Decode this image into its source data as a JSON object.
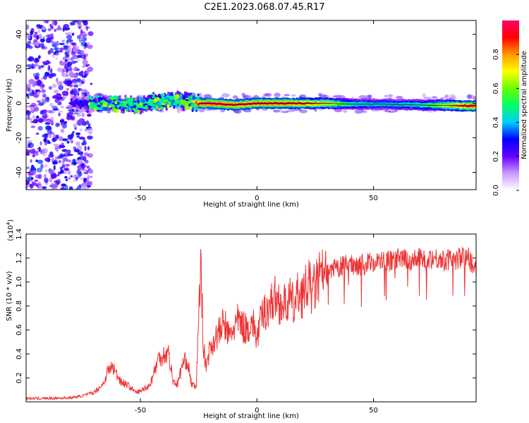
{
  "title": "C2E1.2023.068.07.45.R17",
  "chart_data": [
    {
      "type": "heatmap",
      "xlabel": "Height of straight line (km)",
      "ylabel": "Frequency (Hz)",
      "xlim": [
        -99,
        94
      ],
      "ylim": [
        -50,
        48
      ],
      "x_ticks": [
        {
          "value": -50,
          "label": "-50"
        },
        {
          "value": 0,
          "label": "0"
        },
        {
          "value": 50,
          "label": "50"
        }
      ],
      "y_ticks": [
        {
          "value": -40,
          "label": "-40"
        },
        {
          "value": -20,
          "label": "-20"
        },
        {
          "value": 0,
          "label": "0"
        },
        {
          "value": 20,
          "label": "20"
        },
        {
          "value": 40,
          "label": "40"
        }
      ],
      "ridge": {
        "x": [
          -80,
          -70,
          -60,
          -50,
          -45,
          -40,
          -35,
          -30,
          -25,
          -20,
          -10,
          0,
          10,
          20,
          30,
          40,
          50,
          60,
          70,
          80,
          90,
          94
        ],
        "y": [
          0,
          0,
          -0.5,
          -1,
          1,
          1,
          2,
          1,
          0,
          0,
          -1,
          0,
          0,
          0,
          0,
          -0.5,
          -0.5,
          -0.7,
          -1,
          -1.2,
          -1.5,
          -1.5
        ],
        "amplitude": [
          0.25,
          0.35,
          0.45,
          0.5,
          0.55,
          0.55,
          0.55,
          0.6,
          0.95,
          1.0,
          0.95,
          0.95,
          0.95,
          0.9,
          0.75,
          0.5,
          0.45,
          0.45,
          0.5,
          0.7,
          0.95,
          0.95
        ]
      },
      "colorbar": {
        "label": "Normalized spectral amplitude",
        "range": [
          0,
          1
        ],
        "ticks": [
          {
            "value": 0.0,
            "label": "0.0"
          },
          {
            "value": 0.2,
            "label": "0.2"
          },
          {
            "value": 0.4,
            "label": "0.4"
          },
          {
            "value": 0.6,
            "label": "0.6"
          },
          {
            "value": 0.8,
            "label": "0.8"
          }
        ],
        "stops": [
          "#ffffff",
          "#cc99ff",
          "#6600ff",
          "#0000ff",
          "#00ccff",
          "#00ff66",
          "#66ff00",
          "#ffff00",
          "#ff9900",
          "#ff0000",
          "#ff0066"
        ]
      }
    },
    {
      "type": "line",
      "xlabel": "Height of straight line (km)",
      "ylabel": "SNR (10 * v/v)",
      "y_multiplier": "(x10",
      "y_multiplier_exp": "4",
      "y_multiplier_close": ")",
      "xlim": [
        -99,
        94
      ],
      "ylim": [
        0,
        14000
      ],
      "x_ticks": [
        {
          "value": -50,
          "label": "-50"
        },
        {
          "value": 0,
          "label": "0"
        },
        {
          "value": 50,
          "label": "50"
        }
      ],
      "y_ticks": [
        {
          "value": 2000,
          "label": "0.2"
        },
        {
          "value": 4000,
          "label": "0.4"
        },
        {
          "value": 6000,
          "label": "0.6"
        },
        {
          "value": 8000,
          "label": "0.8"
        },
        {
          "value": 10000,
          "label": "1.0"
        },
        {
          "value": 12000,
          "label": "1.2"
        },
        {
          "value": 14000,
          "label": "1.4"
        }
      ],
      "color": "#ee3333",
      "series": [
        {
          "x": [
            -99,
            -90,
            -80,
            -75,
            -70,
            -66,
            -64,
            -62,
            -60,
            -58,
            -56,
            -54,
            -52,
            -50,
            -48,
            -46,
            -44,
            -42,
            -40,
            -38,
            -36,
            -34,
            -32,
            -30,
            -28,
            -26,
            -25,
            -24,
            -23,
            -22,
            -20,
            -18,
            -16,
            -14,
            -12,
            -10,
            -8,
            -6,
            -4,
            -2,
            0,
            2,
            4,
            6,
            8,
            10,
            12,
            14,
            16,
            18,
            20,
            22,
            24,
            26,
            28,
            30,
            34,
            40,
            46,
            50,
            56,
            60,
            66,
            70,
            76,
            80,
            86,
            90,
            94
          ],
          "y": [
            300,
            300,
            350,
            500,
            800,
            1500,
            2600,
            3000,
            2300,
            1700,
            1500,
            1200,
            800,
            900,
            1200,
            1400,
            2600,
            3800,
            4000,
            4200,
            1800,
            1500,
            3200,
            3600,
            1500,
            1200,
            7500,
            11500,
            5000,
            3000,
            4600,
            5400,
            6000,
            6800,
            5500,
            6300,
            6900,
            6400,
            6200,
            6900,
            5400,
            7200,
            7900,
            8400,
            8900,
            8400,
            8200,
            8800,
            8100,
            9400,
            9100,
            10100,
            9400,
            10400,
            10800,
            10700,
            11200,
            11600,
            11500,
            11800,
            11800,
            12000,
            11900,
            12000,
            12100,
            11900,
            12000,
            12300,
            11200
          ]
        }
      ]
    }
  ]
}
